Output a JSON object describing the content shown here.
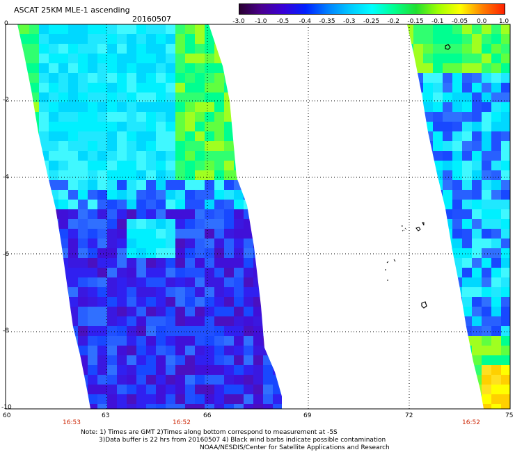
{
  "header": {
    "title": "ASCAT 25KM MLE-1 ascending",
    "date": "20160507"
  },
  "colorbar": {
    "labels": [
      "-3.0",
      "-1.0",
      "-0.5",
      "-0.4",
      "-0.35",
      "-0.3",
      "-0.25",
      "-0.2",
      "-0.15",
      "-0.1",
      "-0.05",
      "0.0",
      "1.0"
    ],
    "colors": [
      "#2a0030",
      "#4a0090",
      "#3800d8",
      "#0020ff",
      "#0080ff",
      "#00c8ff",
      "#00ffff",
      "#00ff90",
      "#20e030",
      "#a0ff00",
      "#ffff00",
      "#ff8000",
      "#ff2000"
    ]
  },
  "axes": {
    "lat_labels": [
      "0",
      "-2",
      "-4",
      "-6",
      "-8",
      "-10"
    ],
    "lon_labels": [
      "60",
      "63",
      "66",
      "69",
      "72",
      "75"
    ]
  },
  "times": [
    "16:53",
    "16:52",
    "16:52"
  ],
  "notes": [
    "Note: 1) Times are GMT 2)Times along bottom correspond to measurement at -5S",
    "3)Data buffer is 22 hrs from 20160507 4) Black wind barbs indicate possible contamination",
    "NOAA/NESDIS/Center for Satellite Applications and Research"
  ]
}
